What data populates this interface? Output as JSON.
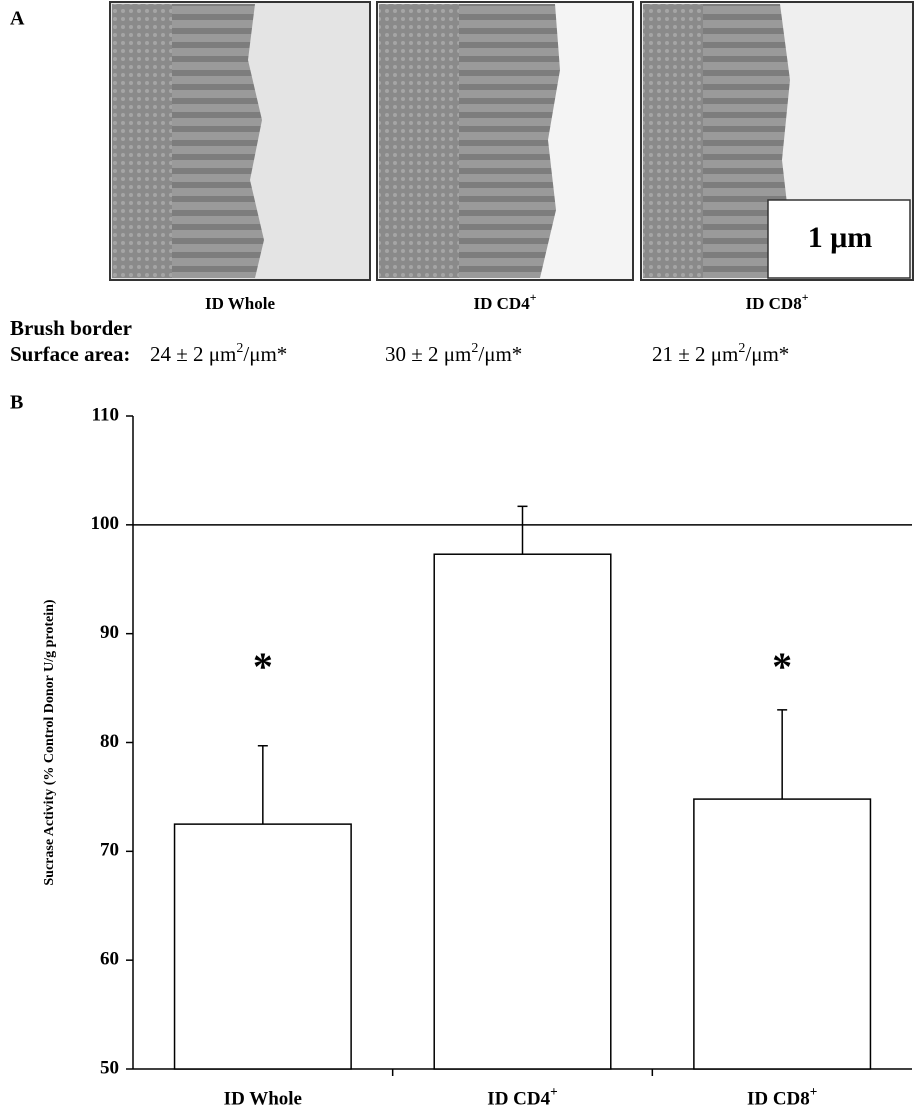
{
  "panel_a": {
    "label": "A",
    "scale_label": "1 μm",
    "captions": [
      "ID Whole",
      "ID CD4+",
      "ID CD8+"
    ],
    "heading": "Brush border",
    "surface_label": "Surface area:",
    "surface_areas": [
      {
        "text": "24 ± 2 μm",
        "sup": "2",
        "rest": "/μm*"
      },
      {
        "text": "30 ± 2 μm",
        "sup": "2",
        "rest": "/μm*"
      },
      {
        "text": "21 ± 2 μm",
        "sup": "2",
        "rest": "/μm*"
      }
    ]
  },
  "chart_data": {
    "type": "bar",
    "panel_label": "B",
    "y_label": "Sucrase Activity (% Control Donor U/g protein)",
    "categories": [
      "ID Whole",
      "ID CD4+",
      "ID CD8+"
    ],
    "values": [
      72.5,
      97.3,
      74.8
    ],
    "errors": [
      7.2,
      4.4,
      8.2
    ],
    "color": "#ffffff",
    "reference_line": 100,
    "annotations": [
      {
        "text": "*",
        "x": "ID Whole",
        "y": 87.5
      },
      {
        "text": "*",
        "x": "ID CD8+",
        "y": 87.5
      }
    ],
    "ylim": [
      50,
      110
    ],
    "yticks": [
      50,
      60,
      70,
      80,
      90,
      100,
      110
    ]
  }
}
